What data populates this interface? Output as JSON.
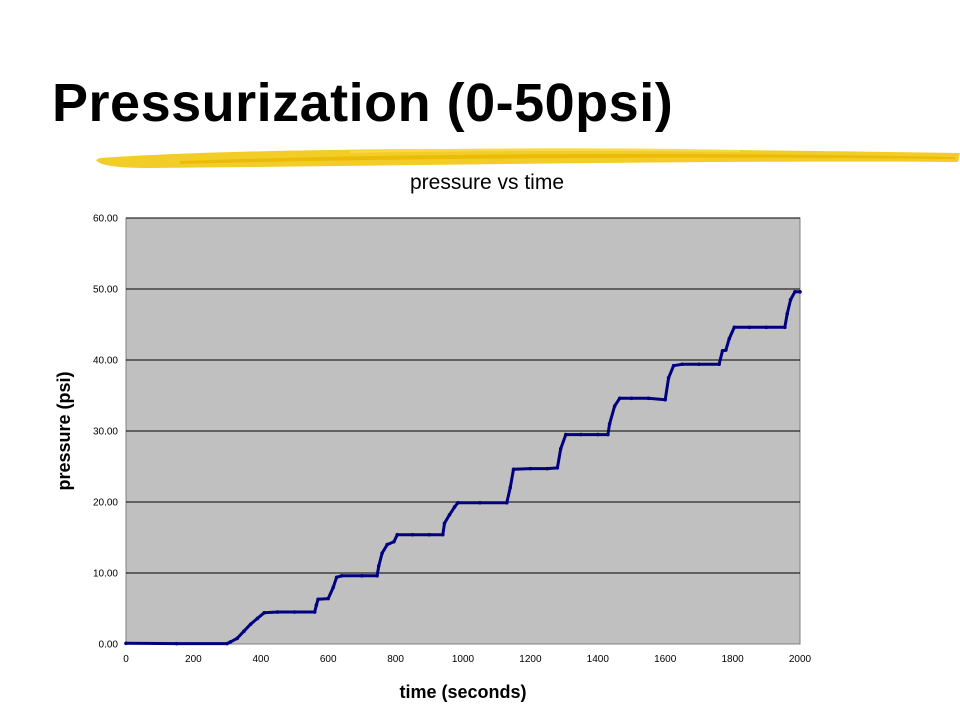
{
  "slide": {
    "title": "Pressurization (0-50psi)"
  },
  "colors": {
    "plot_background": "#c0c0c0",
    "series": "#000080",
    "underline": "#f2c80f"
  },
  "chart_data": {
    "type": "scatter",
    "title": "pressure vs time",
    "xlabel": "time (seconds)",
    "ylabel": "pressure (psi)",
    "xlim": [
      0,
      2000
    ],
    "ylim": [
      0,
      60
    ],
    "x_ticks": [
      "0",
      "200",
      "400",
      "600",
      "800",
      "1000",
      "1200",
      "1400",
      "1600",
      "1800",
      "2000"
    ],
    "y_ticks": [
      "0.00",
      "10.00",
      "20.00",
      "30.00",
      "40.00",
      "50.00",
      "60.00"
    ],
    "grid": "horizontal",
    "legend": "none",
    "series": [
      {
        "points": [
          [
            0,
            0.1
          ],
          [
            150,
            0.05
          ],
          [
            300,
            0.05
          ],
          [
            310,
            0.3
          ],
          [
            330,
            0.8
          ],
          [
            350,
            1.8
          ],
          [
            370,
            2.8
          ],
          [
            390,
            3.6
          ],
          [
            410,
            4.4
          ],
          [
            450,
            4.5
          ],
          [
            500,
            4.5
          ],
          [
            560,
            4.5
          ],
          [
            565,
            5.5
          ],
          [
            570,
            6.3
          ],
          [
            600,
            6.4
          ],
          [
            615,
            8.0
          ],
          [
            625,
            9.4
          ],
          [
            640,
            9.6
          ],
          [
            700,
            9.6
          ],
          [
            745,
            9.6
          ],
          [
            750,
            11.0
          ],
          [
            760,
            12.8
          ],
          [
            775,
            14.0
          ],
          [
            795,
            14.4
          ],
          [
            805,
            15.4
          ],
          [
            850,
            15.4
          ],
          [
            900,
            15.4
          ],
          [
            940,
            15.4
          ],
          [
            945,
            17.0
          ],
          [
            960,
            18.2
          ],
          [
            975,
            19.3
          ],
          [
            985,
            19.9
          ],
          [
            1050,
            19.9
          ],
          [
            1130,
            19.9
          ],
          [
            1140,
            22.0
          ],
          [
            1150,
            24.6
          ],
          [
            1200,
            24.7
          ],
          [
            1250,
            24.7
          ],
          [
            1280,
            24.8
          ],
          [
            1290,
            27.5
          ],
          [
            1305,
            29.5
          ],
          [
            1350,
            29.5
          ],
          [
            1400,
            29.5
          ],
          [
            1430,
            29.5
          ],
          [
            1435,
            31.0
          ],
          [
            1450,
            33.5
          ],
          [
            1465,
            34.6
          ],
          [
            1500,
            34.6
          ],
          [
            1550,
            34.6
          ],
          [
            1600,
            34.4
          ],
          [
            1610,
            37.5
          ],
          [
            1625,
            39.2
          ],
          [
            1650,
            39.4
          ],
          [
            1700,
            39.4
          ],
          [
            1760,
            39.4
          ],
          [
            1770,
            41.3
          ],
          [
            1780,
            41.4
          ],
          [
            1790,
            43.0
          ],
          [
            1805,
            44.6
          ],
          [
            1850,
            44.6
          ],
          [
            1900,
            44.6
          ],
          [
            1955,
            44.6
          ],
          [
            1962,
            46.5
          ],
          [
            1972,
            48.5
          ],
          [
            1985,
            49.6
          ],
          [
            2000,
            49.6
          ]
        ]
      }
    ]
  }
}
